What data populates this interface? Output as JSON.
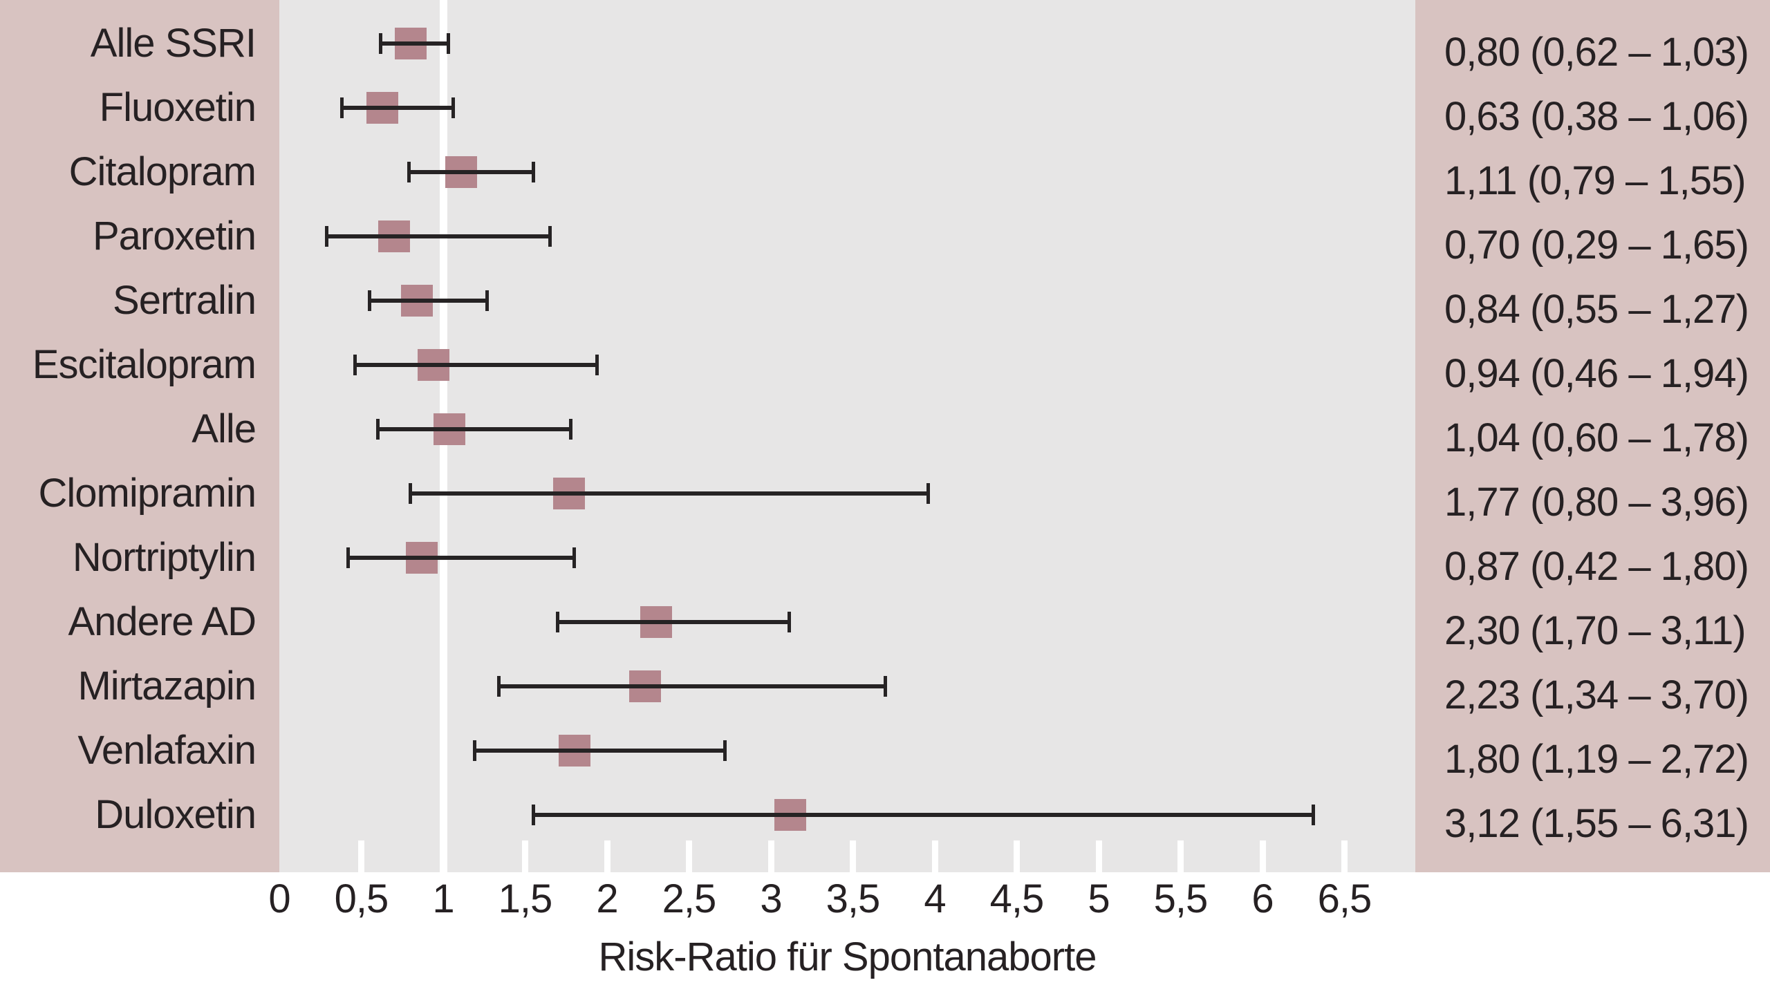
{
  "figure": {
    "kind": "forest-plot",
    "axis_title": "Risk-Ratio für Spontanaborte"
  },
  "colors": {
    "panel_pink": "#d8c3c1",
    "plot_gray": "#e7e6e6",
    "marker_mauve": "#b4868d",
    "errorbar_dark": "#262324",
    "reference_line_white": "#ffffff",
    "text_dark": "#262123"
  },
  "chart_data": {
    "type": "forest",
    "title": "",
    "xlabel": "Risk-Ratio für Spontanaborte",
    "ylabel": "",
    "xlim": [
      0,
      6.92
    ],
    "grid": false,
    "reference_line": 1,
    "x_ticks": [
      0,
      0.5,
      1,
      1.5,
      2,
      2.5,
      3,
      3.5,
      4,
      4.5,
      5,
      5.5,
      6,
      6.5
    ],
    "x_tick_labels": [
      "0",
      "0,5",
      "1",
      "1,5",
      "2",
      "2,5",
      "3",
      "3,5",
      "4",
      "4,5",
      "5",
      "5,5",
      "6",
      "6,5"
    ],
    "rows": [
      {
        "label": "Alle SSRI",
        "rr": 0.8,
        "ci_low": 0.62,
        "ci_high": 1.03,
        "value_text": "0,80 (0,62 – 1,03)"
      },
      {
        "label": "Fluoxetin",
        "rr": 0.63,
        "ci_low": 0.38,
        "ci_high": 1.06,
        "value_text": "0,63 (0,38 – 1,06)"
      },
      {
        "label": "Citalopram",
        "rr": 1.11,
        "ci_low": 0.79,
        "ci_high": 1.55,
        "value_text": "1,11 (0,79 – 1,55)"
      },
      {
        "label": "Paroxetin",
        "rr": 0.7,
        "ci_low": 0.29,
        "ci_high": 1.65,
        "value_text": "0,70 (0,29 – 1,65)"
      },
      {
        "label": "Sertralin",
        "rr": 0.84,
        "ci_low": 0.55,
        "ci_high": 1.27,
        "value_text": "0,84 (0,55 – 1,27)"
      },
      {
        "label": "Escitalopram",
        "rr": 0.94,
        "ci_low": 0.46,
        "ci_high": 1.94,
        "value_text": "0,94 (0,46 – 1,94)"
      },
      {
        "label": "Alle",
        "rr": 1.04,
        "ci_low": 0.6,
        "ci_high": 1.78,
        "value_text": "1,04 (0,60 – 1,78)"
      },
      {
        "label": "Clomipramin",
        "rr": 1.77,
        "ci_low": 0.8,
        "ci_high": 3.96,
        "value_text": "1,77 (0,80 – 3,96)"
      },
      {
        "label": "Nortriptylin",
        "rr": 0.87,
        "ci_low": 0.42,
        "ci_high": 1.8,
        "value_text": "0,87 (0,42 – 1,80)"
      },
      {
        "label": "Andere AD",
        "rr": 2.3,
        "ci_low": 1.7,
        "ci_high": 3.11,
        "value_text": "2,30 (1,70 – 3,11)"
      },
      {
        "label": "Mirtazapin",
        "rr": 2.23,
        "ci_low": 1.34,
        "ci_high": 3.7,
        "value_text": "2,23 (1,34 – 3,70)"
      },
      {
        "label": "Venlafaxin",
        "rr": 1.8,
        "ci_low": 1.19,
        "ci_high": 2.72,
        "value_text": "1,80 (1,19 – 2,72)"
      },
      {
        "label": "Duloxetin",
        "rr": 3.12,
        "ci_low": 1.55,
        "ci_high": 6.31,
        "value_text": "3,12 (1,55 – 6,31)"
      }
    ]
  }
}
